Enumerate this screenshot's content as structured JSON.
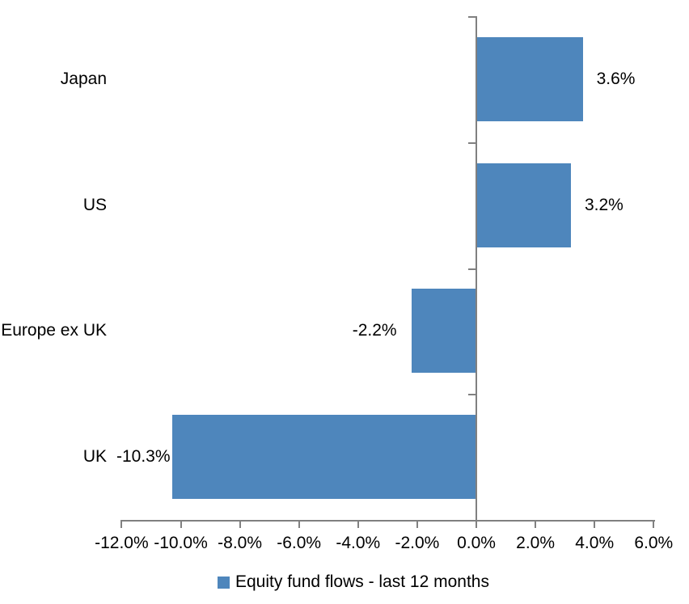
{
  "chart_data": {
    "type": "bar",
    "orientation": "horizontal",
    "title": "",
    "categories": [
      "Japan",
      "US",
      "Europe ex UK",
      "UK"
    ],
    "series": [
      {
        "name": "Equity fund flows - last 12 months",
        "values": [
          3.6,
          3.2,
          -2.2,
          -10.3
        ],
        "labels": [
          "3.6%",
          "3.2%",
          "-2.2%",
          "-10.3%"
        ],
        "color": "#4e86bc"
      }
    ],
    "x_axis": {
      "min": -12,
      "max": 6,
      "step": 2,
      "tick_values": [
        -12,
        -10,
        -8,
        -6,
        -4,
        -2,
        0,
        2,
        4,
        6
      ],
      "tick_labels": [
        "-12.0%",
        "-10.0%",
        "-8.0%",
        "-6.0%",
        "-4.0%",
        "-2.0%",
        "0.0%",
        "2.0%",
        "4.0%",
        "6.0%"
      ]
    },
    "grid": false,
    "legend_position": "bottom",
    "axis_color": "#808080",
    "text_color": "#000000",
    "background": "#ffffff"
  }
}
